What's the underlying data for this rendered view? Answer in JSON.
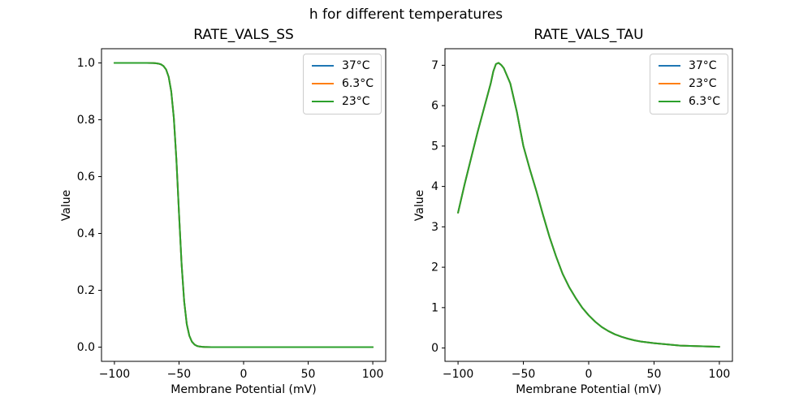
{
  "figure": {
    "suptitle": "h for different temperatures",
    "background": "#ffffff",
    "text_color": "#000000"
  },
  "chart_data": [
    {
      "type": "line",
      "title": "RATE_VALS_SS",
      "xlabel": "Membrane Potential (mV)",
      "ylabel": "Value",
      "xlim": [
        -110,
        110
      ],
      "ylim": [
        -0.05,
        1.05
      ],
      "xticks": [
        -100,
        -50,
        0,
        50,
        100
      ],
      "xtick_labels": [
        "−100",
        "−50",
        "0",
        "50",
        "100"
      ],
      "yticks": [
        0,
        0.2,
        0.4,
        0.6,
        0.8,
        1.0
      ],
      "ytick_labels": [
        "0.0",
        "0.2",
        "0.4",
        "0.6",
        "0.8",
        "1.0"
      ],
      "grid": false,
      "legend_position": "upper right",
      "series": [
        {
          "label": "37°C",
          "color": "#1f77b4"
        },
        {
          "label": "6.3°C",
          "color": "#ff7f0e"
        },
        {
          "label": "23°C",
          "color": "#2ca02c"
        }
      ],
      "series_note": "all three temperature curves overlap exactly (identical sigmoid); green drawn last is visible",
      "x": [
        -100,
        -90,
        -80,
        -75,
        -70,
        -68,
        -66,
        -64,
        -62,
        -60,
        -58,
        -56,
        -54,
        -52,
        -50,
        -48,
        -46,
        -44,
        -42,
        -40,
        -38,
        -36,
        -34,
        -32,
        -30,
        -25,
        -20,
        -10,
        0,
        10,
        20,
        30,
        40,
        50,
        60,
        70,
        80,
        90,
        100
      ],
      "shared_y": [
        1.0,
        1.0,
        1.0,
        0.9999,
        0.9995,
        0.9989,
        0.9976,
        0.995,
        0.989,
        0.977,
        0.951,
        0.899,
        0.806,
        0.658,
        0.471,
        0.292,
        0.161,
        0.081,
        0.04,
        0.019,
        0.009,
        0.004,
        0.002,
        0.001,
        0.0004,
        0.0001,
        0,
        0,
        0,
        0,
        0,
        0,
        0,
        0,
        0,
        0,
        0,
        0,
        0
      ]
    },
    {
      "type": "line",
      "title": "RATE_VALS_TAU",
      "xlabel": "Membrane Potential (mV)",
      "ylabel": "Value",
      "xlim": [
        -110,
        110
      ],
      "ylim": [
        -0.33,
        7.41
      ],
      "xticks": [
        -100,
        -50,
        0,
        50,
        100
      ],
      "xtick_labels": [
        "−100",
        "−50",
        "0",
        "50",
        "100"
      ],
      "yticks": [
        0,
        1,
        2,
        3,
        4,
        5,
        6,
        7
      ],
      "ytick_labels": [
        "0",
        "1",
        "2",
        "3",
        "4",
        "5",
        "6",
        "7"
      ],
      "grid": false,
      "legend_position": "upper right",
      "series": [
        {
          "label": "37°C",
          "color": "#1f77b4"
        },
        {
          "label": "23°C",
          "color": "#ff7f0e"
        },
        {
          "label": "6.3°C",
          "color": "#2ca02c"
        }
      ],
      "series_note": "all three temperature curves overlap exactly (identical bell curve, peak ≈7.06 at ≈−70 mV); green drawn last is visible",
      "x": [
        -100,
        -95,
        -90,
        -85,
        -80,
        -75,
        -73,
        -71,
        -69,
        -67,
        -65,
        -60,
        -55,
        -50,
        -45,
        -40,
        -35,
        -30,
        -25,
        -20,
        -15,
        -10,
        -5,
        0,
        5,
        10,
        15,
        20,
        25,
        30,
        35,
        40,
        45,
        50,
        60,
        70,
        80,
        90,
        100
      ],
      "shared_y": [
        3.35,
        4.05,
        4.7,
        5.35,
        5.95,
        6.55,
        6.85,
        7.03,
        7.06,
        7.01,
        6.93,
        6.55,
        5.85,
        5.0,
        4.42,
        3.88,
        3.3,
        2.75,
        2.27,
        1.84,
        1.51,
        1.24,
        1.0,
        0.81,
        0.65,
        0.52,
        0.42,
        0.34,
        0.28,
        0.23,
        0.19,
        0.16,
        0.14,
        0.12,
        0.09,
        0.06,
        0.05,
        0.04,
        0.03
      ]
    }
  ]
}
